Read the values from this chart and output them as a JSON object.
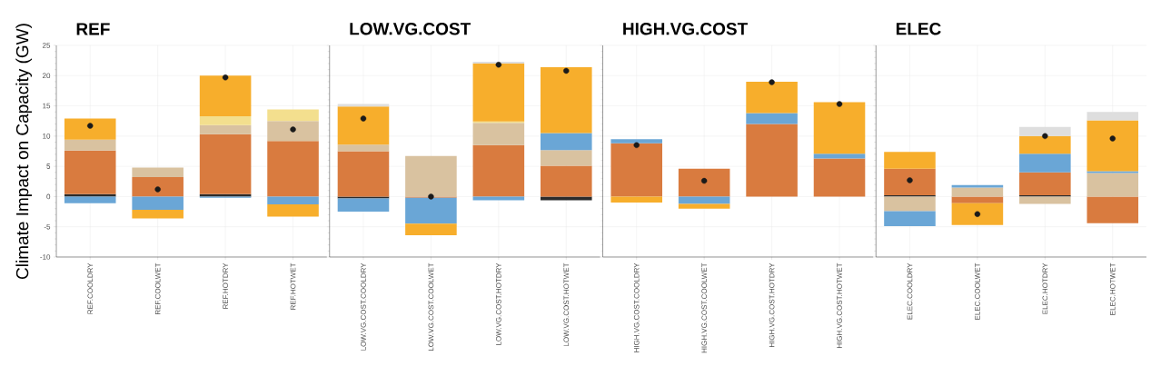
{
  "chart_data": [
    {
      "type": "bar",
      "title": "REF",
      "ylabel": "Climate Impact on Capacity (GW)",
      "stacked": true,
      "grid": true,
      "ylim": [
        -10,
        25
      ],
      "yticks": [
        -10,
        -5,
        0,
        5,
        10,
        15,
        20,
        25
      ],
      "categories": [
        "REF.COOLDRY",
        "REF.COOLWET",
        "REF.HOTDRY",
        "REF.HOTWET"
      ],
      "series": [
        {
          "color": "#2b2b2b",
          "values": [
            0.4,
            null,
            0.4,
            null
          ]
        },
        {
          "color": "#d97b3f",
          "values": [
            7.2,
            3.2,
            9.9,
            9.2
          ]
        },
        {
          "color": "#d9c2a0",
          "values": [
            1.8,
            1.6,
            1.5,
            3.3
          ]
        },
        {
          "color": "#f3df8e",
          "values": [
            null,
            null,
            1.5,
            1.9
          ]
        },
        {
          "color": "#6aa6d6",
          "values": [
            -1.1,
            -2.2,
            -0.2,
            -1.3
          ]
        },
        {
          "color": "#f7ae2c",
          "values": [
            3.5,
            -1.4,
            6.7,
            -2.0
          ]
        },
        {
          "type": "scatter",
          "color": "#1a1a1a",
          "x": [
            "REF.COOLDRY",
            "REF.COOLWET",
            "REF.HOTDRY",
            "REF.HOTWET"
          ],
          "values": [
            11.7,
            1.2,
            19.7,
            11.1
          ]
        }
      ]
    },
    {
      "type": "bar",
      "title": "LOW.VG.COST",
      "stacked": true,
      "grid": true,
      "tick_labels": "x",
      "ylim": [
        -10,
        25
      ],
      "yticks": [
        -10,
        -5,
        0,
        5,
        10,
        15,
        20,
        25
      ],
      "categories": [
        "LOW.VG.COST.COOLDRY",
        "LOW.VG.COST.COOLWET",
        "LOW.VG.COST.HOTDRY",
        "LOW.VG.COST.HOTWET"
      ],
      "series": [
        {
          "color": "#2b2b2b",
          "values": [
            -0.3,
            null,
            null,
            -0.6
          ]
        },
        {
          "color": "#d97b3f",
          "values": [
            7.5,
            -0.2,
            8.5,
            5.1
          ]
        },
        {
          "color": "#d9c2a0",
          "values": [
            1.1,
            6.7,
            3.7,
            2.6
          ]
        },
        {
          "color": "#f3df8e",
          "values": [
            null,
            null,
            0.2,
            null
          ]
        },
        {
          "color": "#6aa6d6",
          "values": [
            -2.2,
            -4.3,
            -0.6,
            2.8
          ]
        },
        {
          "color": "#f7ae2c",
          "values": [
            6.3,
            -1.9,
            9.6,
            10.9
          ]
        },
        {
          "color": "#dedede",
          "values": [
            0.4,
            null,
            0.3,
            null
          ]
        },
        {
          "type": "scatter",
          "color": "#1a1a1a",
          "x": [
            "LOW.VG.COST.COOLDRY",
            "LOW.VG.COST.COOLWET",
            "LOW.VG.COST.HOTDRY",
            "LOW.VG.COST.HOTWET"
          ],
          "values": [
            12.9,
            0,
            21.8,
            20.8
          ]
        }
      ]
    },
    {
      "type": "bar",
      "title": "HIGH.VG.COST",
      "stacked": true,
      "grid": true,
      "tick_labels": "x",
      "ylim": [
        -10,
        25
      ],
      "yticks": [
        -10,
        -5,
        0,
        5,
        10,
        15,
        20,
        25
      ],
      "categories": [
        "HIGH.VG.COST.COOLDRY",
        "HIGH.VG.COST.COOLWET",
        "HIGH.VG.COST.HOTDRY",
        "HIGH.VG.COST.HOTWET"
      ],
      "series": [
        {
          "color": "#d97b3f",
          "values": [
            8.8,
            4.6,
            12,
            6.3
          ]
        },
        {
          "color": "#6aa6d6",
          "values": [
            0.7,
            -1.2,
            1.8,
            0.8
          ]
        },
        {
          "color": "#f7ae2c",
          "values": [
            -1.0,
            -0.8,
            5.2,
            8.5
          ]
        },
        {
          "type": "scatter",
          "color": "#1a1a1a",
          "x": [
            "HIGH.VG.COST.COOLDRY",
            "HIGH.VG.COST.COOLWET",
            "HIGH.VG.COST.HOTDRY",
            "HIGH.VG.COST.HOTWET"
          ],
          "values": [
            8.5,
            2.6,
            18.9,
            15.3
          ]
        }
      ]
    },
    {
      "type": "bar",
      "title": "ELEC",
      "stacked": true,
      "grid": true,
      "tick_labels": "x",
      "ylim": [
        -10,
        25
      ],
      "yticks": [
        -10,
        -5,
        0,
        5,
        10,
        15,
        20,
        25
      ],
      "categories": [
        "ELEC.COOLDRY",
        "ELEC.COOLWET",
        "ELEC.HOTDRY",
        "ELEC.HOTWET"
      ],
      "series": [
        {
          "color": "#2b2b2b",
          "values": [
            0.2,
            null,
            0.2,
            null
          ]
        },
        {
          "color": "#d97b3f",
          "values": [
            4.4,
            -1.1,
            3.8,
            -4.4
          ]
        },
        {
          "color": "#d9c2a0",
          "values": [
            -2.4,
            1.5,
            -1.2,
            3.9
          ]
        },
        {
          "color": "#6aa6d6",
          "values": [
            -2.5,
            0.4,
            3.1,
            0.3
          ]
        },
        {
          "color": "#f7ae2c",
          "values": [
            2.8,
            -3.6,
            2.9,
            8.4
          ]
        },
        {
          "color": "#dedede",
          "values": [
            null,
            null,
            1.5,
            1.4
          ]
        },
        {
          "type": "scatter",
          "color": "#1a1a1a",
          "x": [
            "ELEC.COOLDRY",
            "ELEC.COOLWET",
            "ELEC.HOTDRY",
            "ELEC.HOTWET"
          ],
          "values": [
            2.7,
            -2.9,
            10.0,
            9.6
          ]
        }
      ]
    }
  ]
}
